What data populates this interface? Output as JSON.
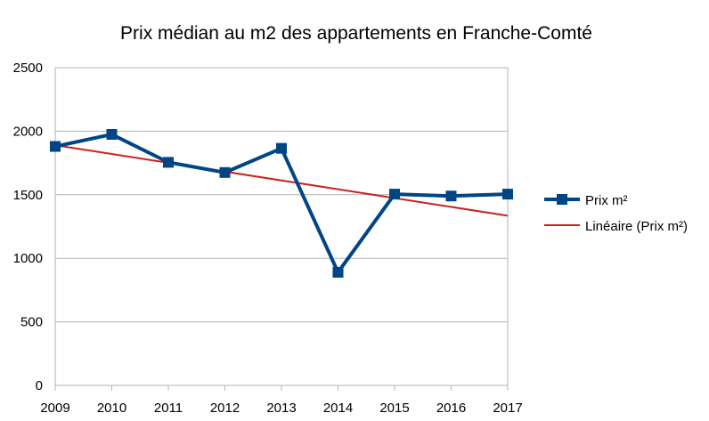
{
  "chart_data": {
    "type": "line",
    "title": "Prix médian au m2 des appartements en Franche-Comté",
    "xlabel": "",
    "ylabel": "",
    "categories": [
      "2009",
      "2010",
      "2011",
      "2012",
      "2013",
      "2014",
      "2015",
      "2016",
      "2017"
    ],
    "ylim": [
      0,
      2500
    ],
    "yticks": [
      0,
      500,
      1000,
      1500,
      2000,
      2500
    ],
    "grid": true,
    "legend_position": "right",
    "series": [
      {
        "name": "Prix m²",
        "values": [
          1880,
          1975,
          1755,
          1675,
          1865,
          890,
          1505,
          1490,
          1505
        ],
        "color": "#004586",
        "marker": "square"
      }
    ],
    "trendline": {
      "name": "Linéaire (Prix m²)",
      "kind": "linear",
      "start_value": 1890,
      "end_value": 1335,
      "color": "#c9211e"
    }
  }
}
